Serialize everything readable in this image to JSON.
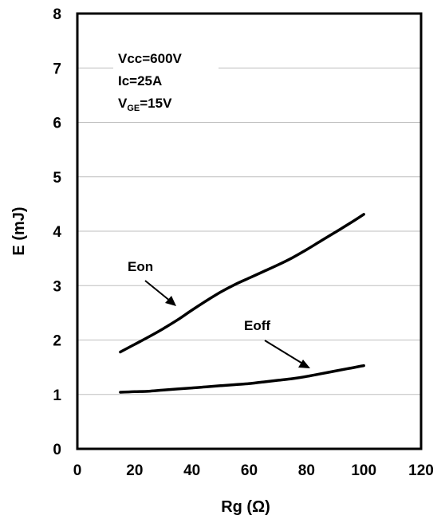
{
  "chart_data": {
    "type": "line",
    "xlabel": "Rg (Ω)",
    "ylabel": "E  (mJ)",
    "xlim": [
      0,
      120
    ],
    "ylim": [
      0,
      8
    ],
    "xticks": [
      "0",
      "20",
      "40",
      "60",
      "80",
      "100",
      "120"
    ],
    "yticks": [
      "0",
      "1",
      "2",
      "3",
      "4",
      "5",
      "6",
      "7",
      "8"
    ],
    "grid": "horizontal",
    "conditions": {
      "vcc": "Vcc=600V",
      "ic": "Ic=25A",
      "vge_prefix": "V",
      "vge_sub": "GE",
      "vge_value": "=15V"
    },
    "series": [
      {
        "name": "Eon",
        "x": [
          15,
          20,
          25,
          30,
          35,
          40,
          45,
          50,
          55,
          60,
          65,
          70,
          75,
          80,
          85,
          90,
          95,
          100
        ],
        "y": [
          1.78,
          1.92,
          2.06,
          2.21,
          2.37,
          2.55,
          2.72,
          2.88,
          3.02,
          3.14,
          3.26,
          3.38,
          3.51,
          3.66,
          3.82,
          3.98,
          4.14,
          4.31
        ]
      },
      {
        "name": "Eoff",
        "x": [
          15,
          20,
          25,
          30,
          35,
          40,
          45,
          50,
          55,
          60,
          65,
          70,
          75,
          80,
          85,
          90,
          95,
          100
        ],
        "y": [
          1.04,
          1.05,
          1.06,
          1.08,
          1.1,
          1.12,
          1.14,
          1.16,
          1.18,
          1.2,
          1.23,
          1.26,
          1.29,
          1.33,
          1.38,
          1.43,
          1.48,
          1.53
        ]
      }
    ],
    "colors": {
      "line": "#000000",
      "grid": "#bfbfbf",
      "frame": "#000000"
    }
  }
}
